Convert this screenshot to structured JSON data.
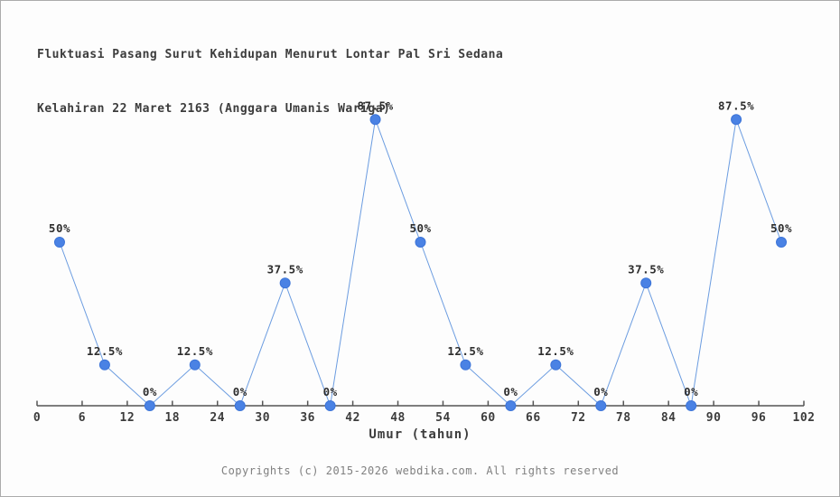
{
  "chart_data": {
    "type": "line",
    "title_line1": "Fluktuasi Pasang Surut Kehidupan Menurut Lontar Pal Sri Sedana",
    "title_line2": "Kelahiran 22 Maret 2163 (Anggara Umanis Wariga)",
    "xlabel": "Umur (tahun)",
    "x": [
      3,
      9,
      15,
      21,
      27,
      33,
      39,
      45,
      51,
      57,
      63,
      69,
      75,
      81,
      87,
      93,
      99
    ],
    "values": [
      50,
      12.5,
      0,
      12.5,
      0,
      37.5,
      0,
      87.5,
      50,
      12.5,
      0,
      12.5,
      0,
      37.5,
      0,
      87.5,
      50
    ],
    "point_labels": [
      "50%",
      "12.5%",
      "0%",
      "12.5%",
      "0%",
      "37.5%",
      "0%",
      "87.5%",
      "50%",
      "12.5%",
      "0%",
      "12.5%",
      "0%",
      "37.5%",
      "0%",
      "87.5%",
      "50%"
    ],
    "x_ticks": [
      0,
      6,
      12,
      18,
      24,
      30,
      36,
      42,
      48,
      54,
      60,
      66,
      72,
      78,
      84,
      90,
      96,
      102
    ],
    "xlim": [
      0,
      102
    ],
    "ylim": [
      0,
      100
    ],
    "grid": false,
    "legend": "none",
    "colors": {
      "line": "#6b9ce0",
      "marker_fill": "#4a82e4",
      "marker_stroke": "#3c74d8",
      "axis": "#555555",
      "tick_text": "#3c3c3c",
      "point_label_text": "#2e2e2e"
    }
  },
  "footer": {
    "copyright": "Copyrights (c) 2015-2026 webdika.com. All rights reserved"
  }
}
